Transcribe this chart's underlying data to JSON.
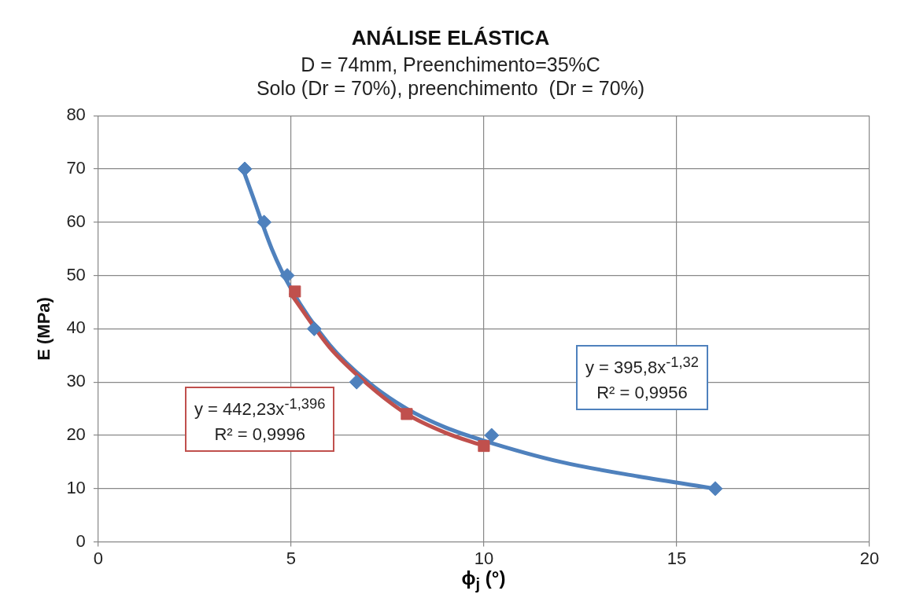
{
  "chart_data": {
    "type": "scatter",
    "title": "ANÁLISE ELÁSTICA",
    "subtitle": "D = 74mm, Preenchimento=35%C\nSolo (Dr = 70%), preenchimento  (Dr = 70%)",
    "xlabel": "ϕ$_{j}$ (°)",
    "ylabel": "E (MPa)",
    "series": [
      {
        "type": "scatter",
        "color": "#4f81bd",
        "marker": "diamond",
        "x": [
          3.8,
          4.3,
          4.9,
          5.6,
          6.7,
          10.2,
          16
        ],
        "values": [
          70,
          60,
          50,
          40,
          30,
          20,
          10
        ]
      },
      {
        "type": "scatter",
        "color": "#c0504d",
        "marker": "square",
        "x": [
          5.1,
          8,
          10
        ],
        "values": [
          47,
          24,
          18
        ]
      },
      {
        "type": "line",
        "color": "#c0504d",
        "marker": "none",
        "x": [
          5,
          6,
          7,
          8,
          9,
          10
        ],
        "values": [
          46.5,
          36.5,
          29.5,
          24,
          20.5,
          18
        ]
      },
      {
        "type": "line",
        "color": "#4f81bd",
        "marker": "none",
        "x": [
          3.8,
          4,
          4.5,
          5,
          6,
          7,
          8,
          9,
          10,
          12,
          14,
          16
        ],
        "values": [
          69,
          65,
          55,
          47.5,
          37,
          30,
          25,
          21.5,
          19,
          15,
          12.3,
          10
        ]
      }
    ],
    "annotations": [
      "y = 442,23x$^{-1,396}$\nR² = 0,9996",
      "y = 395,8x$^{-1,32}$\nR² = 0,9956"
    ],
    "xlim": [
      0,
      20
    ],
    "xticks": [
      0,
      5,
      10,
      15,
      20
    ],
    "ylim": [
      0,
      80
    ],
    "yticks": [
      0,
      10,
      20,
      30,
      40,
      50,
      60,
      70,
      80
    ],
    "grid": true,
    "legend": false
  }
}
